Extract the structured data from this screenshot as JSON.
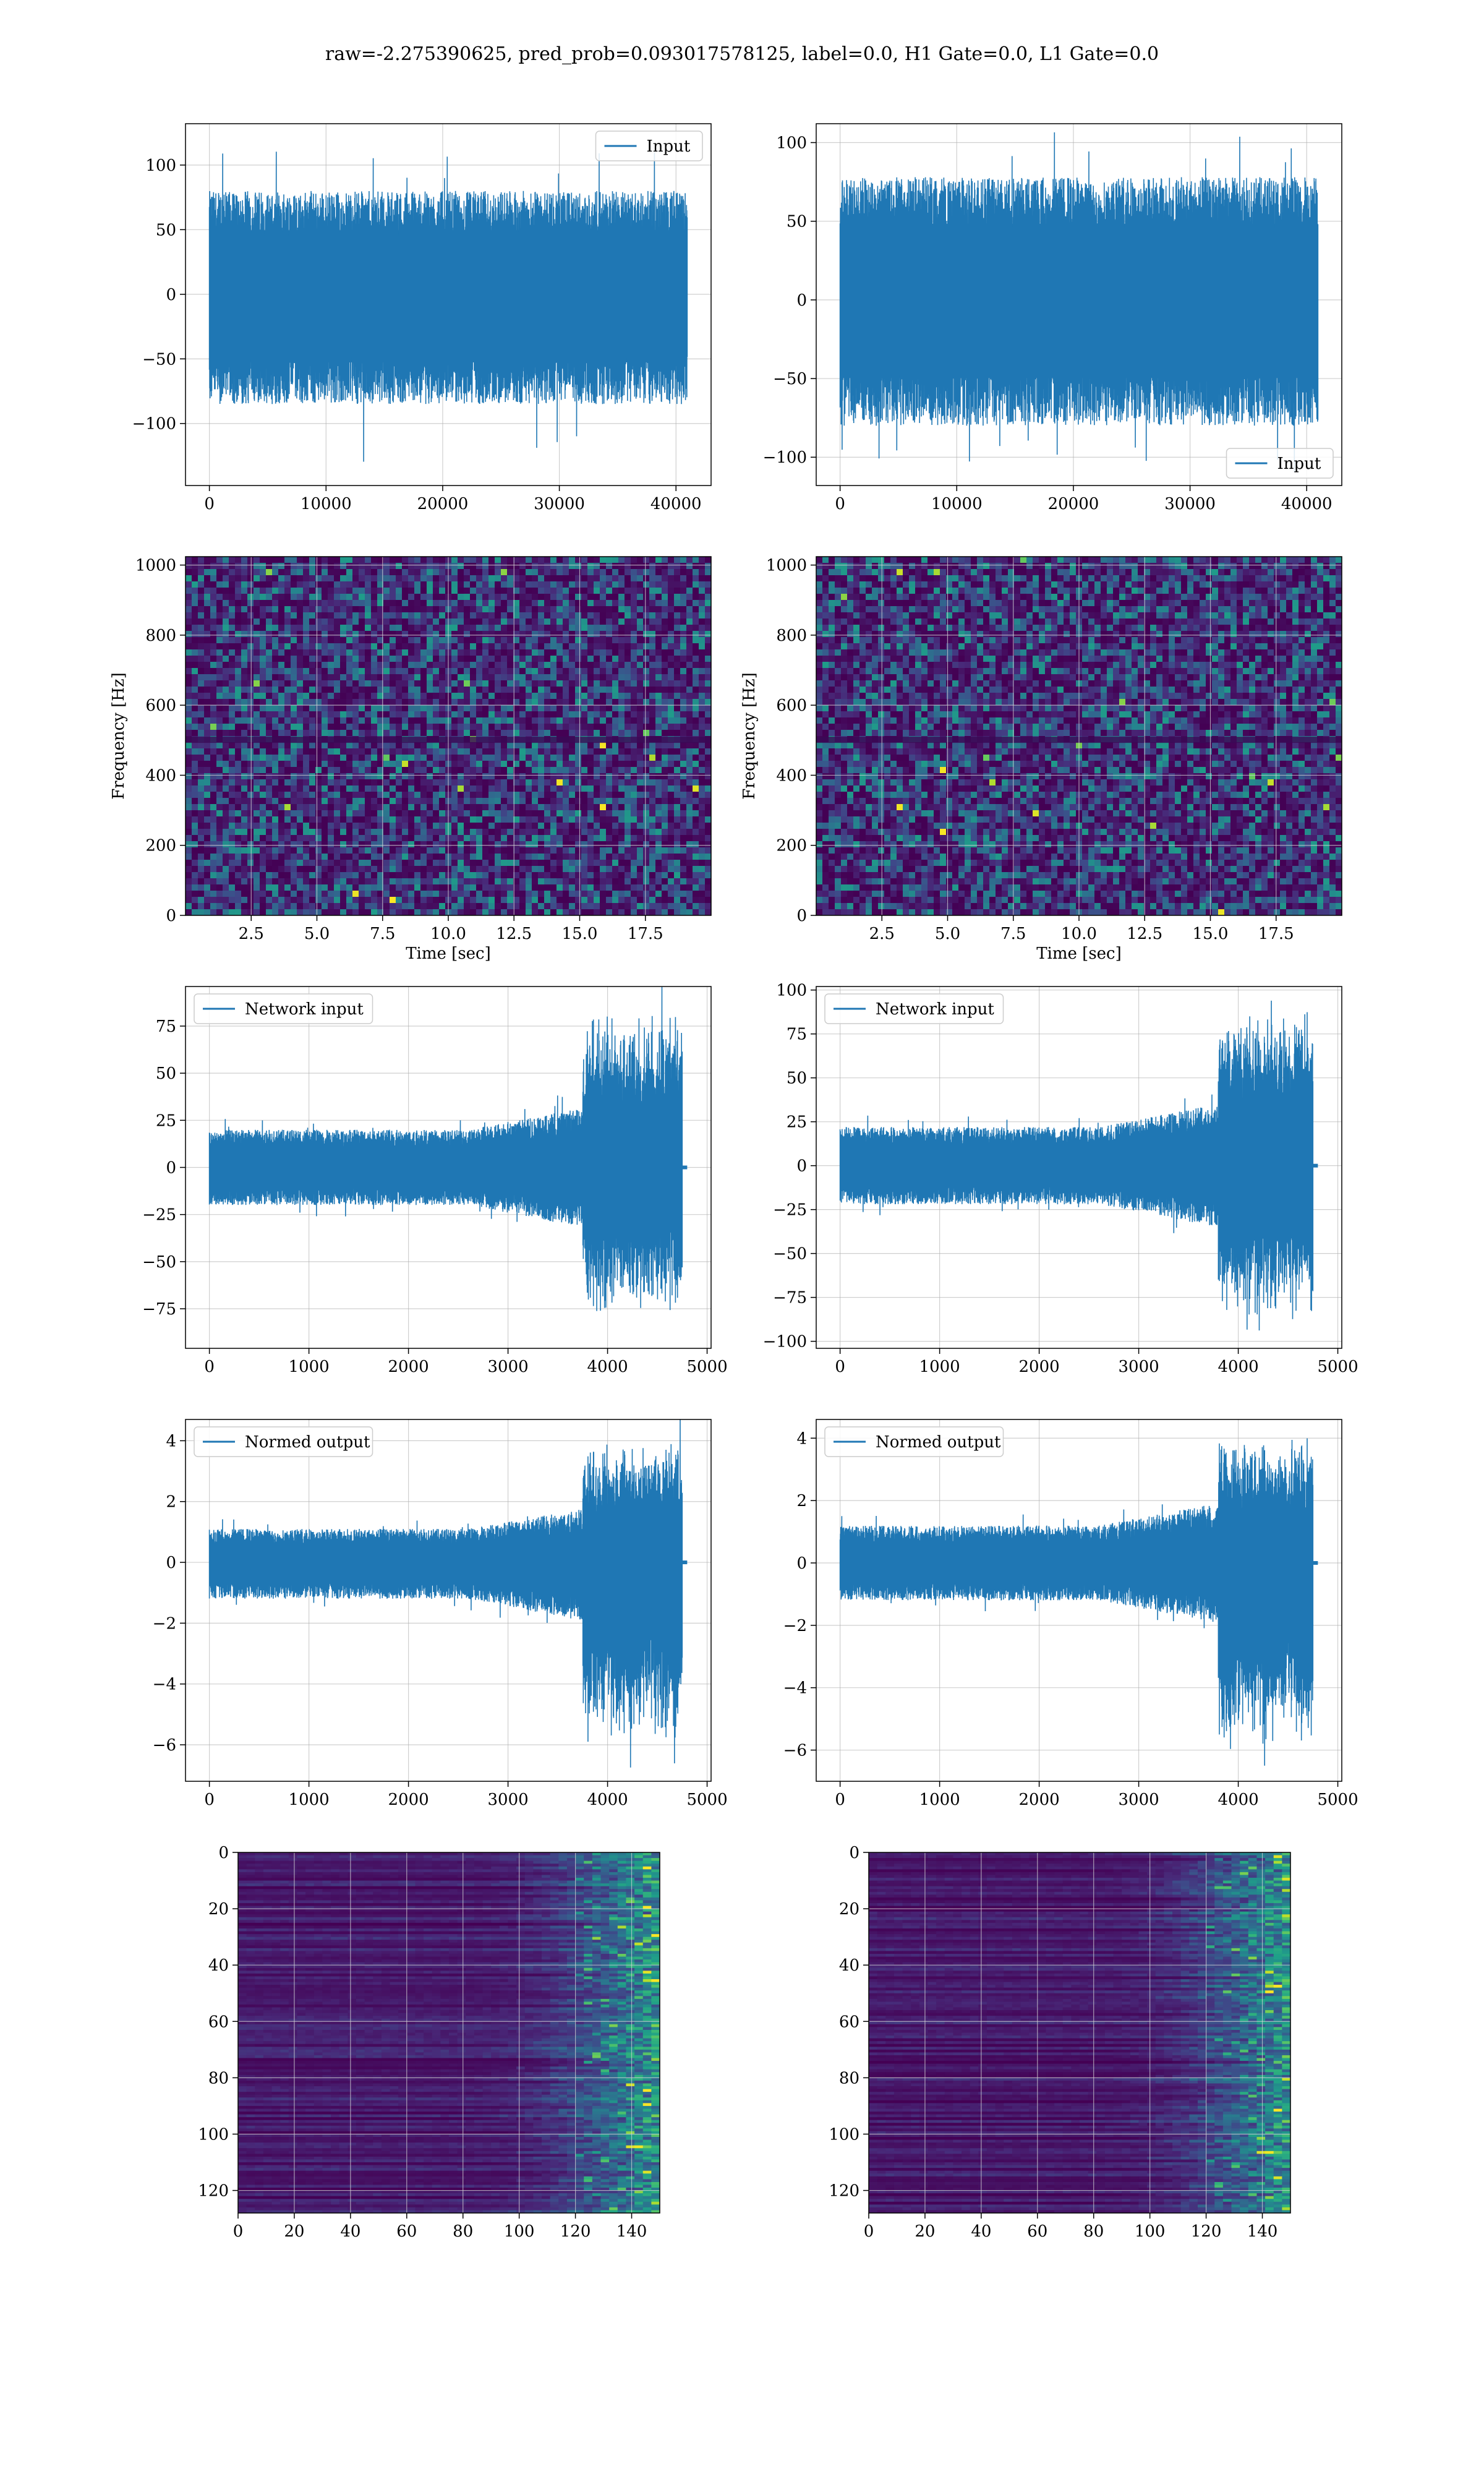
{
  "title": "raw=-2.275390625, pred_prob=0.093017578125, label=0.0, H1 Gate=0.0, L1 Gate=0.0",
  "colors": {
    "line": "#1f77b4",
    "grid": "#b0b0b0",
    "spec_bg": "#3b1b66",
    "viridis_low": "#440154",
    "viridis_high": "#fde725"
  },
  "chart_data": [
    {
      "id": "raw-h1",
      "type": "line",
      "legend": "Input",
      "legend_loc": "upper right",
      "xlim": [
        -2048,
        43008
      ],
      "ylim": [
        -148,
        132
      ],
      "xticks": [
        0,
        10000,
        20000,
        30000,
        40000
      ],
      "yticks": [
        -100,
        -50,
        0,
        50,
        100
      ],
      "xtick_labels": [
        "0",
        "10000",
        "20000",
        "30000",
        "40000"
      ],
      "ytick_labels": [
        "−100",
        "−50",
        "0",
        "50",
        "100"
      ],
      "series": [
        {
          "name": "Input",
          "x_range": [
            0,
            40960
          ],
          "envelope": [
            -85,
            80
          ],
          "spikes": [
            -135,
            112
          ],
          "profile": "noise"
        }
      ]
    },
    {
      "id": "raw-l1",
      "type": "line",
      "legend": "Input",
      "legend_loc": "lower right",
      "xlim": [
        -2048,
        43008
      ],
      "ylim": [
        -118,
        112
      ],
      "xticks": [
        0,
        10000,
        20000,
        30000,
        40000
      ],
      "yticks": [
        -100,
        -50,
        0,
        50,
        100
      ],
      "xtick_labels": [
        "0",
        "10000",
        "20000",
        "30000",
        "40000"
      ],
      "ytick_labels": [
        "−100",
        "−50",
        "0",
        "50",
        "100"
      ],
      "series": [
        {
          "name": "Input",
          "x_range": [
            0,
            40960
          ],
          "envelope": [
            -80,
            78
          ],
          "spikes": [
            -110,
            108
          ],
          "profile": "noise"
        }
      ]
    },
    {
      "id": "spec-h1",
      "type": "heatmap",
      "xlabel": "Time [sec]",
      "ylabel": "Frequency [Hz]",
      "xlim": [
        0,
        20
      ],
      "ylim": [
        0,
        1024
      ],
      "xticks": [
        2.5,
        5.0,
        7.5,
        10.0,
        12.5,
        15.0,
        17.5
      ],
      "yticks": [
        0,
        200,
        400,
        600,
        800,
        1000
      ],
      "xtick_labels": [
        "2.5",
        "5.0",
        "7.5",
        "10.0",
        "12.5",
        "15.0",
        "17.5"
      ],
      "ytick_labels": [
        "0",
        "200",
        "400",
        "600",
        "800",
        "1000"
      ]
    },
    {
      "id": "spec-l1",
      "type": "heatmap",
      "xlabel": "Time [sec]",
      "ylabel": "Frequency [Hz]",
      "xlim": [
        0,
        20
      ],
      "ylim": [
        0,
        1024
      ],
      "xticks": [
        2.5,
        5.0,
        7.5,
        10.0,
        12.5,
        15.0,
        17.5
      ],
      "yticks": [
        0,
        200,
        400,
        600,
        800,
        1000
      ],
      "xtick_labels": [
        "2.5",
        "5.0",
        "7.5",
        "10.0",
        "12.5",
        "15.0",
        "17.5"
      ],
      "ytick_labels": [
        "0",
        "200",
        "400",
        "600",
        "800",
        "1000"
      ]
    },
    {
      "id": "net-h1",
      "type": "line",
      "legend": "Network input",
      "legend_loc": "upper left",
      "xlim": [
        -240,
        5040
      ],
      "ylim": [
        -96,
        96
      ],
      "xticks": [
        0,
        1000,
        2000,
        3000,
        4000,
        5000
      ],
      "yticks": [
        -75,
        -50,
        -25,
        0,
        25,
        50,
        75
      ],
      "xtick_labels": [
        "0",
        "1000",
        "2000",
        "3000",
        "4000",
        "5000"
      ],
      "ytick_labels": [
        "−75",
        "−50",
        "−25",
        "0",
        "25",
        "50",
        "75"
      ],
      "series": [
        {
          "name": "Network input",
          "x_range": [
            0,
            4800
          ],
          "end_x": 4750,
          "envelope": [
            -20,
            20
          ],
          "burst": [
            -80,
            85
          ],
          "burst_start": 3750,
          "profile": "chirp"
        }
      ]
    },
    {
      "id": "net-l1",
      "type": "line",
      "legend": "Network input",
      "legend_loc": "upper left",
      "xlim": [
        -240,
        5040
      ],
      "ylim": [
        -104,
        102
      ],
      "xticks": [
        0,
        1000,
        2000,
        3000,
        4000,
        5000
      ],
      "yticks": [
        -100,
        -75,
        -50,
        -25,
        0,
        25,
        50,
        75,
        100
      ],
      "xtick_labels": [
        "0",
        "1000",
        "2000",
        "3000",
        "4000",
        "5000"
      ],
      "ytick_labels": [
        "−100",
        "−75",
        "−50",
        "−25",
        "0",
        "25",
        "50",
        "75",
        "100"
      ],
      "series": [
        {
          "name": "Network input",
          "x_range": [
            0,
            4800
          ],
          "end_x": 4750,
          "envelope": [
            -22,
            22
          ],
          "burst": [
            -92,
            92
          ],
          "burst_start": 3800,
          "profile": "chirp"
        }
      ]
    },
    {
      "id": "norm-h1",
      "type": "line",
      "legend": "Normed output",
      "legend_loc": "upper left",
      "xlim": [
        -240,
        5040
      ],
      "ylim": [
        -7.2,
        4.7
      ],
      "xticks": [
        0,
        1000,
        2000,
        3000,
        4000,
        5000
      ],
      "yticks": [
        -6,
        -4,
        -2,
        0,
        2,
        4
      ],
      "xtick_labels": [
        "0",
        "1000",
        "2000",
        "3000",
        "4000",
        "5000"
      ],
      "ytick_labels": [
        "−6",
        "−4",
        "−2",
        "0",
        "2",
        "4"
      ],
      "series": [
        {
          "name": "Normed output",
          "x_range": [
            0,
            4800
          ],
          "end_x": 4750,
          "envelope": [
            -1.2,
            1.1
          ],
          "burst": [
            -6.2,
            4.1
          ],
          "burst_start": 3750,
          "profile": "chirp"
        }
      ]
    },
    {
      "id": "norm-l1",
      "type": "line",
      "legend": "Normed output",
      "legend_loc": "upper left",
      "xlim": [
        -240,
        5040
      ],
      "ylim": [
        -7.0,
        4.6
      ],
      "xticks": [
        0,
        1000,
        2000,
        3000,
        4000,
        5000
      ],
      "yticks": [
        -6,
        -4,
        -2,
        0,
        2,
        4
      ],
      "xtick_labels": [
        "0",
        "1000",
        "2000",
        "3000",
        "4000",
        "5000"
      ],
      "ytick_labels": [
        "−6",
        "−4",
        "−2",
        "0",
        "2",
        "4"
      ],
      "series": [
        {
          "name": "Normed output",
          "x_range": [
            0,
            4800
          ],
          "end_x": 4750,
          "envelope": [
            -1.2,
            1.2
          ],
          "burst": [
            -6.2,
            4.2
          ],
          "burst_start": 3800,
          "profile": "chirp"
        }
      ]
    },
    {
      "id": "feat-h1",
      "type": "heatmap",
      "xlim": [
        0,
        150
      ],
      "ylim": [
        128,
        0
      ],
      "xticks": [
        0,
        20,
        40,
        60,
        80,
        100,
        120,
        140
      ],
      "yticks": [
        0,
        20,
        40,
        60,
        80,
        100,
        120
      ],
      "xtick_labels": [
        "0",
        "20",
        "40",
        "60",
        "80",
        "100",
        "120",
        "140"
      ],
      "ytick_labels": [
        "0",
        "20",
        "40",
        "60",
        "80",
        "100",
        "120"
      ]
    },
    {
      "id": "feat-l1",
      "type": "heatmap",
      "xlim": [
        0,
        150
      ],
      "ylim": [
        128,
        0
      ],
      "xticks": [
        0,
        20,
        40,
        60,
        80,
        100,
        120,
        140
      ],
      "yticks": [
        0,
        20,
        40,
        60,
        80,
        100,
        120
      ],
      "xtick_labels": [
        "0",
        "20",
        "40",
        "60",
        "80",
        "100",
        "120",
        "140"
      ],
      "ytick_labels": [
        "0",
        "20",
        "40",
        "60",
        "80",
        "100",
        "120"
      ]
    }
  ]
}
